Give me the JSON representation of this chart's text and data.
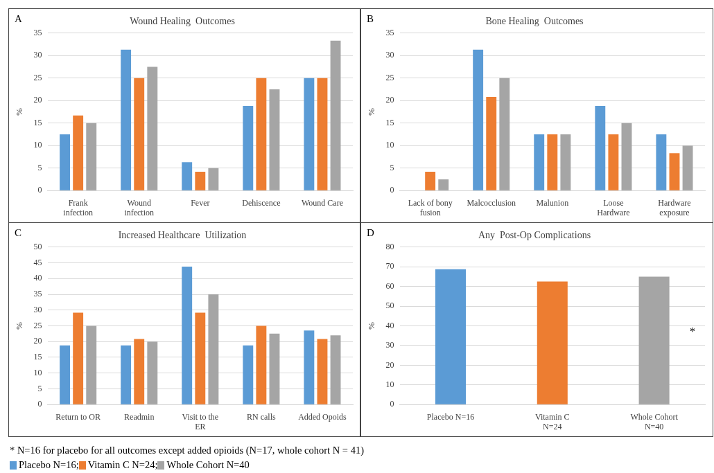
{
  "chart_data": [
    {
      "type": "bar",
      "title": "Wound Healing  Outcomes",
      "ylabel": "%",
      "annotations": [
        "A"
      ],
      "categories": [
        "Frank infection",
        "Wound infection",
        "Fever",
        "Dehiscence",
        "Wound Care"
      ],
      "series": [
        {
          "color": "#5b9bd5",
          "values": [
            12.5,
            31.3,
            6.3,
            18.8,
            25
          ]
        },
        {
          "color": "#ed7d31",
          "values": [
            16.7,
            25,
            4.2,
            25,
            25
          ]
        },
        {
          "color": "#a5a5a5",
          "values": [
            15,
            27.5,
            5,
            22.5,
            33.3
          ]
        }
      ],
      "ylim": [
        0,
        35
      ],
      "yticks": [
        0,
        5,
        10,
        15,
        20,
        25,
        30,
        35
      ],
      "grid": "y"
    },
    {
      "type": "bar",
      "title": "Bone Healing  Outcomes",
      "ylabel": "%",
      "annotations": [
        "B"
      ],
      "categories": [
        "Lack of bony fusion",
        "Malcocclusion",
        "Malunion",
        "Loose Hardware",
        "Hardware exposure"
      ],
      "series": [
        {
          "color": "#5b9bd5",
          "values": [
            0,
            31.3,
            12.5,
            18.8,
            12.5
          ]
        },
        {
          "color": "#ed7d31",
          "values": [
            4.2,
            20.8,
            12.5,
            12.5,
            8.3
          ]
        },
        {
          "color": "#a5a5a5",
          "values": [
            2.5,
            25,
            12.5,
            15,
            10
          ]
        }
      ],
      "ylim": [
        0,
        35
      ],
      "yticks": [
        0,
        5,
        10,
        15,
        20,
        25,
        30,
        35
      ],
      "grid": "y"
    },
    {
      "type": "bar",
      "title": "Increased Healthcare  Utilization",
      "ylabel": "%",
      "annotations": [
        "C"
      ],
      "categories": [
        "Return to OR",
        "Readmin",
        "Visit to the ER",
        "RN calls",
        "Added Opoids"
      ],
      "series": [
        {
          "name": "Placebo N=16;",
          "color": "#5b9bd5",
          "values": [
            18.8,
            18.8,
            43.8,
            18.8,
            23.5
          ]
        },
        {
          "name": "Vitamin  C N=24;",
          "color": "#ed7d31",
          "values": [
            29.2,
            20.8,
            29.2,
            25,
            20.8
          ]
        },
        {
          "name": "Whole Cohort N=40",
          "color": "#a5a5a5",
          "values": [
            25,
            20,
            35,
            22.5,
            22
          ]
        }
      ],
      "ylim": [
        0,
        50
      ],
      "yticks": [
        0,
        5,
        10,
        15,
        20,
        25,
        30,
        35,
        40,
        45,
        50
      ],
      "grid": "y",
      "legend": "bottom"
    },
    {
      "type": "bar",
      "title": "Any  Post-Op Complications",
      "ylabel": "%",
      "annotations": [
        "D",
        "*",
        "* N=16 for placebo for all outcomes except added opioids (N=17, whole cohort N = 41)"
      ],
      "categories": [
        "Placebo N=16",
        "Vitamin C N=24",
        "Whole Cohort N=40"
      ],
      "values": [
        68.8,
        62.5,
        65
      ],
      "colors": [
        "#5b9bd5",
        "#ed7d31",
        "#a5a5a5"
      ],
      "ylim": [
        0,
        80
      ],
      "yticks": [
        0,
        10,
        20,
        30,
        40,
        50,
        60,
        70,
        80
      ],
      "grid": "y"
    }
  ]
}
